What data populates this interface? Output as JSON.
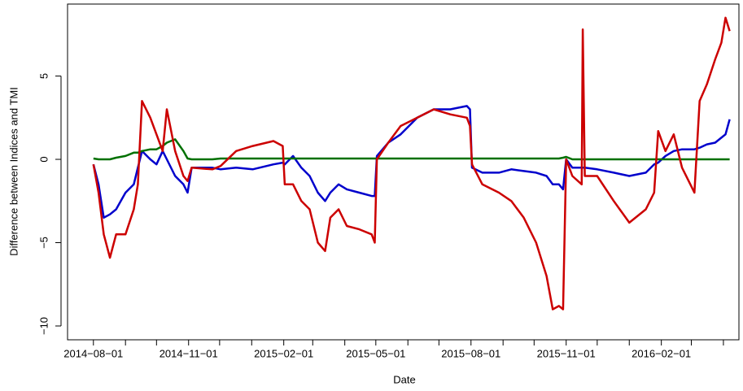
{
  "chart_data": {
    "type": "line",
    "x_label": "Date",
    "y_label": "Difference between Indices and TMI",
    "x": [
      "2014-08-01",
      "2014-08-06",
      "2014-08-11",
      "2014-08-17",
      "2014-08-23",
      "2014-09-01",
      "2014-09-09",
      "2014-09-13",
      "2014-09-17",
      "2014-09-25",
      "2014-10-01",
      "2014-10-07",
      "2014-10-11",
      "2014-10-19",
      "2014-10-27",
      "2014-10-31",
      "2014-11-04",
      "2014-11-24",
      "2014-12-02",
      "2014-12-17",
      "2015-01-02",
      "2015-01-22",
      "2015-01-31",
      "2015-02-02",
      "2015-02-10",
      "2015-02-18",
      "2015-02-26",
      "2015-03-06",
      "2015-03-13",
      "2015-03-18",
      "2015-03-26",
      "2015-04-03",
      "2015-04-15",
      "2015-04-27",
      "2015-04-30",
      "2015-05-02",
      "2015-05-13",
      "2015-05-25",
      "2015-06-10",
      "2015-06-26",
      "2015-07-12",
      "2015-07-28",
      "2015-07-31",
      "2015-08-02",
      "2015-08-12",
      "2015-08-28",
      "2015-09-09",
      "2015-09-21",
      "2015-10-03",
      "2015-10-13",
      "2015-10-19",
      "2015-10-25",
      "2015-10-29",
      "2015-11-01",
      "2015-11-07",
      "2015-11-16",
      "2015-11-17",
      "2015-11-19",
      "2015-12-01",
      "2015-12-17",
      "2016-01-01",
      "2016-01-17",
      "2016-01-25",
      "2016-01-29",
      "2016-02-05",
      "2016-02-13",
      "2016-02-21",
      "2016-02-29",
      "2016-03-04",
      "2016-03-09",
      "2016-03-16",
      "2016-03-24",
      "2016-03-30",
      "2016-04-03",
      "2016-04-07"
    ],
    "series": [
      {
        "name": "blue",
        "color": "#0000cc",
        "values": [
          -0.3,
          -1.5,
          -3.5,
          -3.3,
          -3,
          -2,
          -1.5,
          -0.5,
          0.5,
          0,
          -0.3,
          0.5,
          0,
          -1,
          -1.5,
          -2,
          -0.5,
          -0.5,
          -0.6,
          -0.5,
          -0.6,
          -0.3,
          -0.2,
          -0.3,
          0.2,
          -0.5,
          -1,
          -2,
          -2.5,
          -2,
          -1.5,
          -1.8,
          -2,
          -2.2,
          -2.2,
          0.2,
          1,
          1.5,
          2.5,
          3,
          3,
          3.2,
          3,
          -0.5,
          -0.8,
          -0.8,
          -0.6,
          -0.7,
          -0.8,
          -1,
          -1.5,
          -1.5,
          -1.8,
          0,
          -0.5,
          -0.5,
          -0.5,
          -0.5,
          -0.6,
          -0.8,
          -1,
          -0.8,
          -0.3,
          -0.2,
          0.2,
          0.5,
          0.6,
          0.6,
          0.6,
          0.7,
          0.9,
          1,
          1.3,
          1.5,
          2.4
        ]
      },
      {
        "name": "green",
        "color": "#007000",
        "values": [
          0.05,
          0,
          0,
          0,
          0.1,
          0.2,
          0.4,
          0.4,
          0.5,
          0.6,
          0.6,
          0.8,
          1,
          1.2,
          0.5,
          0.05,
          0,
          0,
          0.05,
          0.05,
          0.05,
          0.05,
          0.05,
          0.05,
          0.05,
          0.05,
          0.05,
          0.05,
          0.05,
          0.05,
          0.05,
          0.05,
          0.05,
          0.05,
          0.05,
          0.05,
          0.05,
          0.05,
          0.05,
          0.05,
          0.05,
          0.05,
          0.05,
          0.05,
          0.05,
          0.05,
          0.05,
          0.05,
          0.05,
          0.05,
          0.05,
          0.05,
          0.1,
          0.15,
          0,
          0,
          0,
          0,
          0,
          0,
          0,
          0,
          0,
          0,
          0,
          0,
          0,
          0,
          0,
          0,
          0,
          0,
          0,
          0,
          0
        ]
      },
      {
        "name": "red",
        "color": "#cc0000",
        "values": [
          -0.3,
          -2,
          -4.5,
          -5.9,
          -4.5,
          -4.5,
          -3,
          -1.5,
          3.5,
          2.5,
          1.5,
          0.5,
          3,
          0.5,
          -1,
          -1.3,
          -0.5,
          -0.6,
          -0.4,
          0.5,
          0.8,
          1.1,
          0.8,
          -1.5,
          -1.5,
          -2.5,
          -3,
          -5,
          -5.5,
          -3.5,
          -3,
          -4,
          -4.2,
          -4.5,
          -5,
          0,
          1,
          2,
          2.5,
          3,
          2.7,
          2.5,
          2,
          -0.3,
          -1.5,
          -2,
          -2.5,
          -3.5,
          -5,
          -7,
          -9,
          -8.8,
          -9,
          0,
          -1,
          -1.5,
          7.8,
          -1,
          -1,
          -2.5,
          -3.8,
          -3,
          -2,
          1.7,
          0.5,
          1.5,
          -0.5,
          -1.5,
          -2,
          3.5,
          4.5,
          6,
          7,
          8.5,
          7.7
        ]
      }
    ],
    "xlim": [
      "2014-07-07",
      "2016-04-16"
    ],
    "xticks": [
      {
        "value": "2014-08-01",
        "label": "2014−08−01"
      },
      {
        "value": "2014-11-01",
        "label": "2014−11−01"
      },
      {
        "value": "2015-02-01",
        "label": "2015−02−01"
      },
      {
        "value": "2015-05-01",
        "label": "2015−05−01"
      },
      {
        "value": "2015-08-01",
        "label": "2015−08−01"
      },
      {
        "value": "2015-11-01",
        "label": "2015−11−01"
      },
      {
        "value": "2016-02-01",
        "label": "2016−02−01"
      }
    ],
    "xminorticks": [
      "2014-09-01",
      "2014-10-01",
      "2014-12-01",
      "2015-01-01",
      "2015-03-01",
      "2015-04-01",
      "2015-06-01",
      "2015-07-01",
      "2015-09-01",
      "2015-10-01",
      "2015-12-01",
      "2016-01-01",
      "2016-03-01",
      "2016-04-01"
    ],
    "ylim": [
      -10.83,
      9.32
    ],
    "yticks": [
      {
        "value": -10,
        "label": "−10"
      },
      {
        "value": -5,
        "label": "−5"
      },
      0,
      5
    ]
  }
}
